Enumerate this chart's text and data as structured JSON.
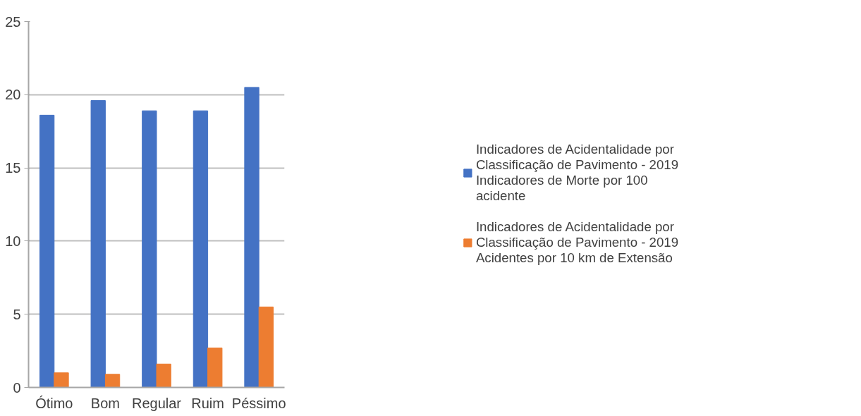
{
  "chart_data": {
    "type": "bar",
    "categories": [
      "Ótimo",
      "Bom",
      "Regular",
      "Ruim",
      "Péssimo"
    ],
    "series": [
      {
        "name": "Indicadores de Acidentalidade por Classificação de Pavimento - 2019 Indicadores de Morte por 100 acidente",
        "color": "#4472c4",
        "values": [
          18.6,
          19.6,
          18.9,
          18.9,
          20.5
        ]
      },
      {
        "name": "Indicadores de Acidentalidade por Classificação de Pavimento - 2019 Acidentes por 10 km de Extensão",
        "color": "#ed7d31",
        "values": [
          1.0,
          0.9,
          1.6,
          2.7,
          5.5
        ]
      }
    ],
    "ylim": [
      0,
      25
    ],
    "yticks": [
      0,
      5,
      10,
      15,
      20,
      25
    ],
    "grid": "y",
    "legend": "right"
  }
}
